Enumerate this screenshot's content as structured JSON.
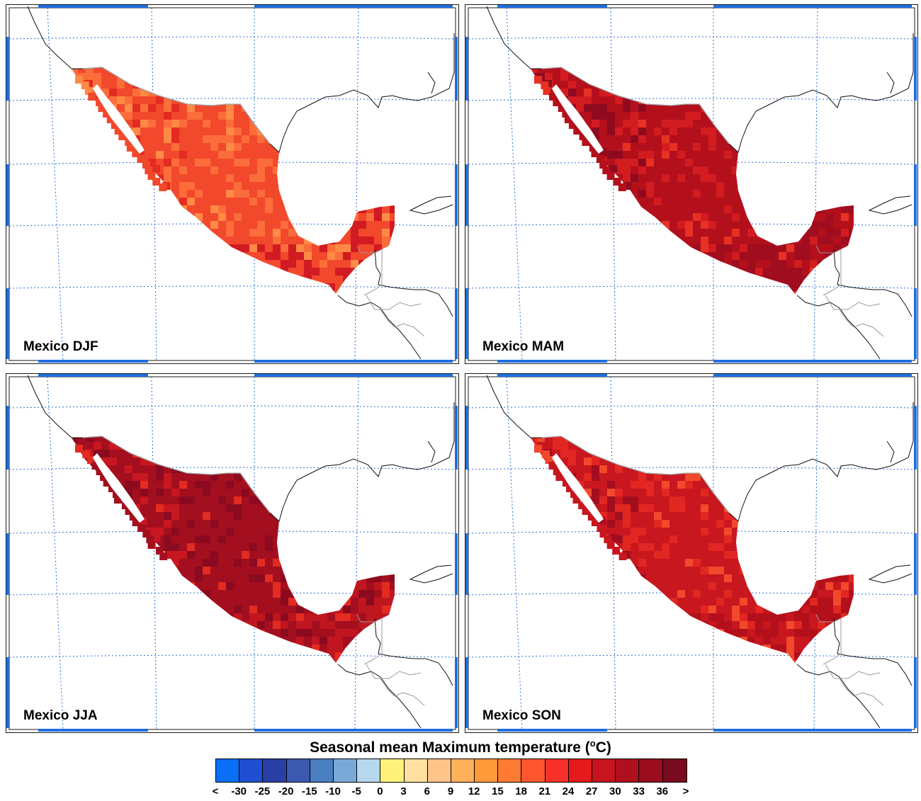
{
  "panels": [
    {
      "label": "Mexico DJF",
      "shade": {
        "main": "#f2482c",
        "north": "#fb6d3a",
        "edge": "#e32b21",
        "south": "#d11a22",
        "spot": "#ff8a45"
      }
    },
    {
      "label": "Mexico MAM",
      "shade": {
        "main": "#b3101c",
        "north": "#d21c20",
        "edge": "#8f0a1f",
        "south": "#a00d1f",
        "spot": "#e83124"
      }
    },
    {
      "label": "Mexico JJA",
      "shade": {
        "main": "#a30f1f",
        "north": "#8c0a20",
        "edge": "#c81720",
        "south": "#c0161f",
        "spot": "#e32b21"
      }
    },
    {
      "label": "Mexico SON",
      "shade": {
        "main": "#c8171f",
        "north": "#e22621",
        "edge": "#a20e1f",
        "south": "#b3101c",
        "spot": "#f2482c"
      }
    }
  ],
  "legend": {
    "title": "Seasonal mean Maximum temperature (",
    "title_unit_sup": "o",
    "title_unit_end": "C)",
    "colors": [
      "#0a6ff6",
      "#1f4fd0",
      "#2a3fa6",
      "#3c59b0",
      "#4a7fc0",
      "#7aa9d8",
      "#b6d8ec",
      "#fff27a",
      "#ffe0a0",
      "#ffc48a",
      "#ffb05a",
      "#ff9a3a",
      "#ff7a33",
      "#ff5630",
      "#f7312a",
      "#e41a1c",
      "#c8141f",
      "#b00f1d",
      "#990d1f",
      "#7a0a1d"
    ],
    "ticks": [
      "<",
      "-30",
      "-25",
      "-20",
      "-15",
      "-10",
      "-5",
      "0",
      "3",
      "6",
      "9",
      "12",
      "15",
      "18",
      "21",
      "24",
      "27",
      "30",
      "33",
      "36",
      ">"
    ]
  }
}
